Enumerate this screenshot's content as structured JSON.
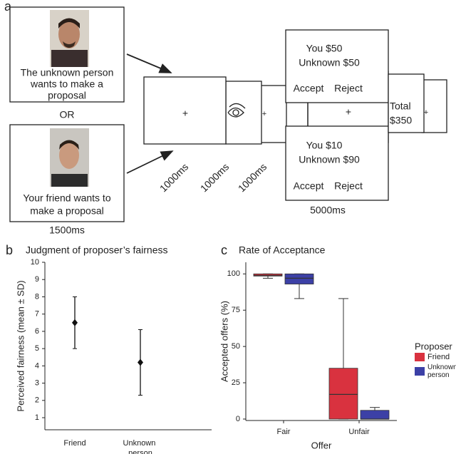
{
  "diagram": {
    "panel_label": "a",
    "cue_unknown": [
      "The unknown person",
      "wants to make a",
      "proposal"
    ],
    "or": "OR",
    "cue_friend": [
      "Your friend wants to",
      "make a proposal"
    ],
    "cue_time": "1500ms",
    "fixation": "+",
    "fix_times": [
      "1000ms",
      "1000ms",
      "1000ms"
    ],
    "offer_fair": [
      "You $50",
      "Unknown $50"
    ],
    "offer_unfair": [
      "You $10",
      "Unknown $90"
    ],
    "accept": "Accept",
    "reject": "Reject",
    "offer_time": "5000ms",
    "total": [
      "Total",
      "$350"
    ]
  },
  "chart_data": [
    {
      "type": "errorbar",
      "panel_label": "b",
      "title": "Judgment of proposer’s fairness",
      "ylabel": "Perceived fairness (mean ± SD)",
      "categories": [
        "Friend",
        "Unknown person"
      ],
      "values": [
        6.5,
        4.2
      ],
      "errors": [
        1.5,
        1.9
      ],
      "color": "#111111",
      "ylim": [
        0.3,
        10
      ],
      "yticks": [
        1,
        2,
        3,
        4,
        5,
        6,
        7,
        8,
        9,
        10
      ]
    },
    {
      "type": "box",
      "panel_label": "c",
      "title": "Rate of Acceptance",
      "ylabel": "Accepted offers (%)",
      "xlabel": "Offer",
      "legend_title": "Proposer",
      "categories": [
        "Fair",
        "Unfair"
      ],
      "series": [
        {
          "name": "Friend",
          "color": "#d9323f",
          "min": [
            97,
            0
          ],
          "q1": [
            98.5,
            0
          ],
          "median": [
            99,
            17
          ],
          "q3": [
            100,
            35
          ],
          "max": [
            100,
            83
          ]
        },
        {
          "name": "Unknown person",
          "color": "#3c40a6",
          "min": [
            83,
            0
          ],
          "q1": [
            93,
            0
          ],
          "median": [
            97,
            0
          ],
          "q3": [
            100,
            6
          ],
          "max": [
            100,
            8
          ]
        }
      ],
      "ylim": [
        -1,
        108
      ],
      "yticks": [
        0,
        25,
        50,
        75,
        100
      ]
    }
  ]
}
